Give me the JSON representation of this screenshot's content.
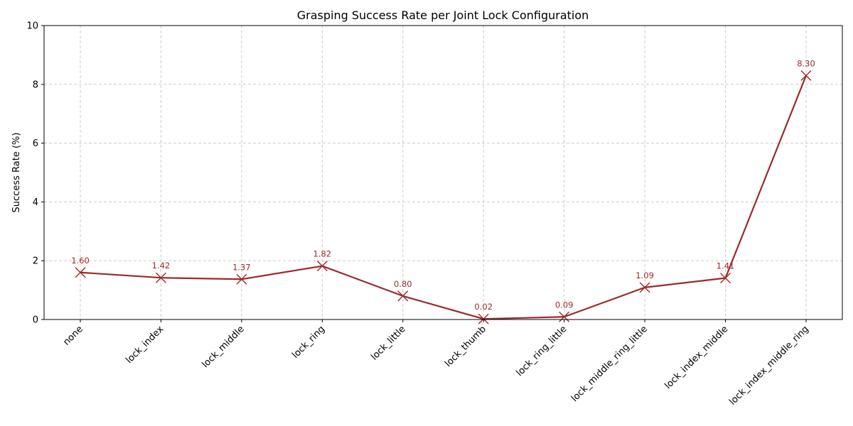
{
  "chart_data": {
    "type": "line",
    "title": "Grasping Success Rate per Joint Lock Configuration",
    "xlabel": "",
    "ylabel": "Success Rate (%)",
    "ylim": [
      0,
      10
    ],
    "yticks": [
      0,
      2,
      4,
      6,
      8,
      10
    ],
    "grid": true,
    "categories": [
      "none",
      "lock_index",
      "lock_middle",
      "lock_ring",
      "lock_little",
      "lock_thumb",
      "lock_ring_little",
      "lock_middle_ring_little",
      "lock_index_middle",
      "lock_index_middle_ring"
    ],
    "series": [
      {
        "values": [
          1.6,
          1.42,
          1.37,
          1.82,
          0.8,
          0.02,
          0.09,
          1.09,
          1.41,
          8.3
        ],
        "labels": [
          "1.60",
          "1.42",
          "1.37",
          "1.82",
          "0.80",
          "0.02",
          "0.09",
          "1.09",
          "1.41",
          "8.30"
        ],
        "color": "#9b2a2a",
        "marker": "x"
      }
    ]
  }
}
